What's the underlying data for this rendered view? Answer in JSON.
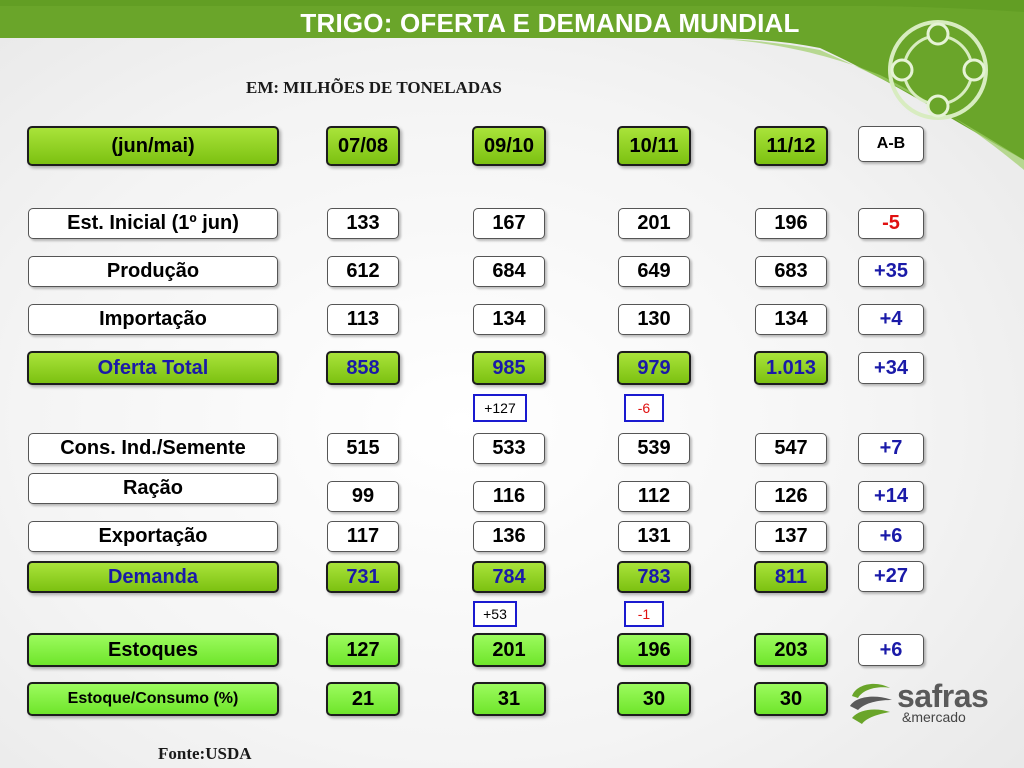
{
  "title": "TRIGO: OFERTA E DEMANDA MUNDIAL",
  "subtitle": "EM: MILHÕES DE TONELADAS",
  "footer": "Fonte:USDA",
  "colors": {
    "header_green": "#6fa82a",
    "row_green": "#8fd321",
    "bright_green": "#7df03c",
    "blue_text": "#1a1aa8",
    "red_text": "#e01010"
  },
  "header": {
    "label": "(jun/mai)",
    "years": [
      "07/08",
      "09/10",
      "10/11",
      "11/12"
    ],
    "diff_label": "A-B"
  },
  "rows": [
    {
      "label": "Est. Inicial (1º jun)",
      "values": [
        "133",
        "167",
        "201",
        "196"
      ],
      "diff": "-5"
    },
    {
      "label": "Produção",
      "values": [
        "612",
        "684",
        "649",
        "683"
      ],
      "diff": "+35"
    },
    {
      "label": "Importação",
      "values": [
        "113",
        "134",
        "130",
        "134"
      ],
      "diff": "+4"
    },
    {
      "label": "Oferta Total",
      "values": [
        "858",
        "985",
        "979",
        "1.013"
      ],
      "diff": "+34"
    },
    {
      "label": "Cons. Ind./Semente",
      "values": [
        "515",
        "533",
        "539",
        "547"
      ],
      "diff": "+7"
    },
    {
      "label": "Ração",
      "values": [
        "99",
        "116",
        "112",
        "126"
      ],
      "diff": "+14"
    },
    {
      "label": "Exportação",
      "values": [
        "117",
        "136",
        "131",
        "137"
      ],
      "diff": "+6"
    },
    {
      "label": "Demanda",
      "values": [
        "731",
        "784",
        "783",
        "811"
      ],
      "diff": "+27"
    },
    {
      "label": "Estoques",
      "values": [
        "127",
        "201",
        "196",
        "203"
      ],
      "diff": "+6"
    },
    {
      "label": "Estoque/Consumo (%)",
      "values": [
        "21",
        "31",
        "30",
        "30"
      ]
    }
  ],
  "annotations": {
    "oferta_09_10": "+127",
    "oferta_10_11": "-6",
    "demanda_09_10": "+53",
    "demanda_10_11": "-1"
  },
  "logo": {
    "name": "safras",
    "sub": "&mercado"
  }
}
